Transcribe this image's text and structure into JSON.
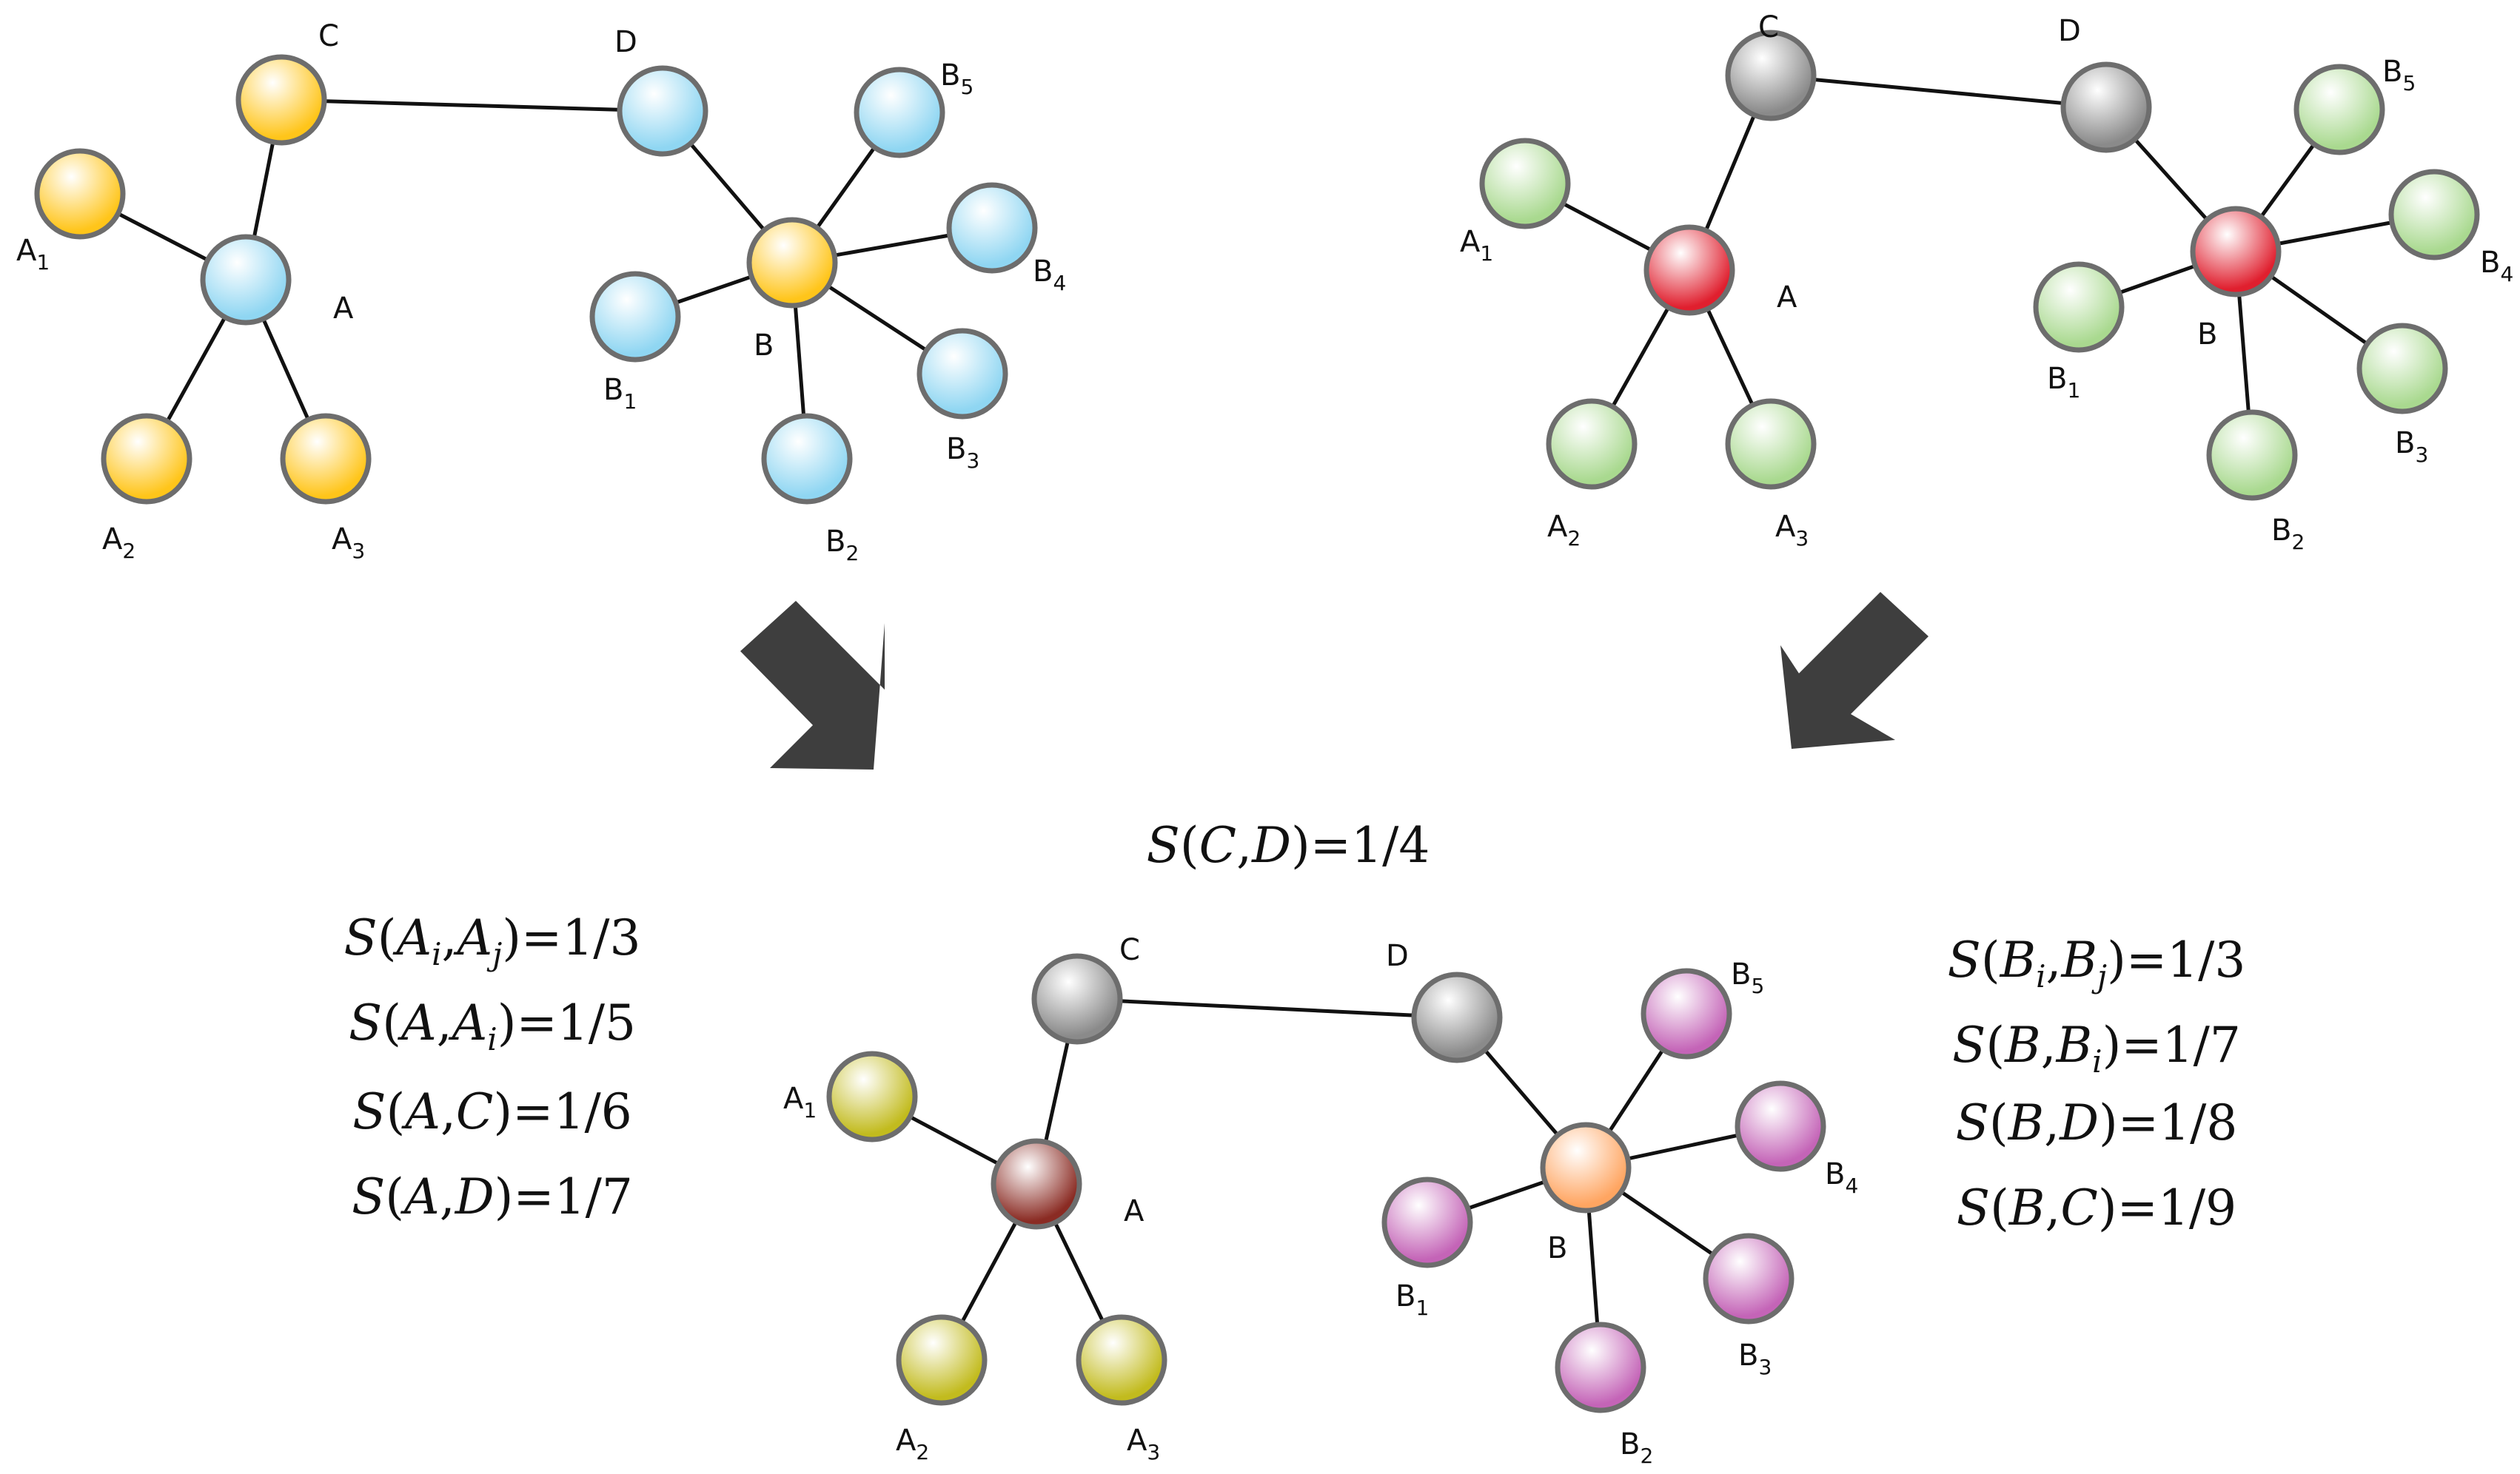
{
  "colors": {
    "yellow": "#ffc51a",
    "blue": "#8fd6f2",
    "gray": "#8a8a8a",
    "red": "#e01f2e",
    "green": "#a9d98f",
    "olive": "#c2bb1e",
    "brown": "#8a2b23",
    "orange": "#ffa561",
    "purple": "#c464b7",
    "arrow": "#3e3e3e",
    "node_stroke": "#6d6d6d"
  },
  "graphs": [
    {
      "name": "graph-top-left",
      "nodes": [
        {
          "id": "C",
          "base": "C",
          "sub": "",
          "color": "yellow"
        },
        {
          "id": "D",
          "base": "D",
          "sub": "",
          "color": "blue"
        },
        {
          "id": "A",
          "base": "A",
          "sub": "",
          "color": "blue"
        },
        {
          "id": "A1",
          "base": "A",
          "sub": "1",
          "color": "yellow"
        },
        {
          "id": "A2",
          "base": "A",
          "sub": "2",
          "color": "yellow"
        },
        {
          "id": "A3",
          "base": "A",
          "sub": "3",
          "color": "yellow"
        },
        {
          "id": "B",
          "base": "B",
          "sub": "",
          "color": "yellow"
        },
        {
          "id": "B1",
          "base": "B",
          "sub": "1",
          "color": "blue"
        },
        {
          "id": "B2",
          "base": "B",
          "sub": "2",
          "color": "blue"
        },
        {
          "id": "B3",
          "base": "B",
          "sub": "3",
          "color": "blue"
        },
        {
          "id": "B4",
          "base": "B",
          "sub": "4",
          "color": "blue"
        },
        {
          "id": "B5",
          "base": "B",
          "sub": "5",
          "color": "blue"
        }
      ]
    },
    {
      "name": "graph-top-right",
      "nodes": [
        {
          "id": "C",
          "base": "C",
          "sub": "",
          "color": "gray"
        },
        {
          "id": "D",
          "base": "D",
          "sub": "",
          "color": "gray"
        },
        {
          "id": "A",
          "base": "A",
          "sub": "",
          "color": "red"
        },
        {
          "id": "A1",
          "base": "A",
          "sub": "1",
          "color": "green"
        },
        {
          "id": "A2",
          "base": "A",
          "sub": "2",
          "color": "green"
        },
        {
          "id": "A3",
          "base": "A",
          "sub": "3",
          "color": "green"
        },
        {
          "id": "B",
          "base": "B",
          "sub": "",
          "color": "red"
        },
        {
          "id": "B1",
          "base": "B",
          "sub": "1",
          "color": "green"
        },
        {
          "id": "B2",
          "base": "B",
          "sub": "2",
          "color": "green"
        },
        {
          "id": "B3",
          "base": "B",
          "sub": "3",
          "color": "green"
        },
        {
          "id": "B4",
          "base": "B",
          "sub": "4",
          "color": "green"
        },
        {
          "id": "B5",
          "base": "B",
          "sub": "5",
          "color": "green"
        }
      ]
    },
    {
      "name": "graph-bottom",
      "nodes": [
        {
          "id": "C",
          "base": "C",
          "sub": "",
          "color": "gray"
        },
        {
          "id": "D",
          "base": "D",
          "sub": "",
          "color": "gray"
        },
        {
          "id": "A",
          "base": "A",
          "sub": "",
          "color": "brown"
        },
        {
          "id": "A1",
          "base": "A",
          "sub": "1",
          "color": "olive"
        },
        {
          "id": "A2",
          "base": "A",
          "sub": "2",
          "color": "olive"
        },
        {
          "id": "A3",
          "base": "A",
          "sub": "3",
          "color": "olive"
        },
        {
          "id": "B",
          "base": "B",
          "sub": "",
          "color": "orange"
        },
        {
          "id": "B1",
          "base": "B",
          "sub": "1",
          "color": "purple"
        },
        {
          "id": "B2",
          "base": "B",
          "sub": "2",
          "color": "purple"
        },
        {
          "id": "B3",
          "base": "B",
          "sub": "3",
          "color": "purple"
        },
        {
          "id": "B4",
          "base": "B",
          "sub": "4",
          "color": "purple"
        },
        {
          "id": "B5",
          "base": "B",
          "sub": "5",
          "color": "purple"
        }
      ]
    }
  ],
  "edges": [
    [
      "A",
      "C"
    ],
    [
      "C",
      "D"
    ],
    [
      "A",
      "A1"
    ],
    [
      "A",
      "A2"
    ],
    [
      "A",
      "A3"
    ],
    [
      "D",
      "B"
    ],
    [
      "B",
      "B1"
    ],
    [
      "B",
      "B2"
    ],
    [
      "B",
      "B3"
    ],
    [
      "B",
      "B4"
    ],
    [
      "B",
      "B5"
    ]
  ],
  "formulas": {
    "cd": {
      "arg1": "C",
      "arg1_sub": "",
      "arg2": "D",
      "arg2_sub": "",
      "value": "1/4"
    },
    "left": [
      {
        "arg1": "A",
        "arg1_sub": "i",
        "arg2": "A",
        "arg2_sub": "j",
        "value": "1/3"
      },
      {
        "arg1": "A",
        "arg1_sub": "",
        "arg2": "A",
        "arg2_sub": "i",
        "value": "1/5"
      },
      {
        "arg1": "A",
        "arg1_sub": "",
        "arg2": "C",
        "arg2_sub": "",
        "value": "1/6"
      },
      {
        "arg1": "A",
        "arg1_sub": "",
        "arg2": "D",
        "arg2_sub": "",
        "value": "1/7"
      }
    ],
    "right": [
      {
        "arg1": "B",
        "arg1_sub": "i",
        "arg2": "B",
        "arg2_sub": "j",
        "value": "1/3"
      },
      {
        "arg1": "B",
        "arg1_sub": "",
        "arg2": "B",
        "arg2_sub": "i",
        "value": "1/7"
      },
      {
        "arg1": "B",
        "arg1_sub": "",
        "arg2": "D",
        "arg2_sub": "",
        "value": "1/8"
      },
      {
        "arg1": "B",
        "arg1_sub": "",
        "arg2": "C",
        "arg2_sub": "",
        "value": "1/9"
      }
    ]
  }
}
